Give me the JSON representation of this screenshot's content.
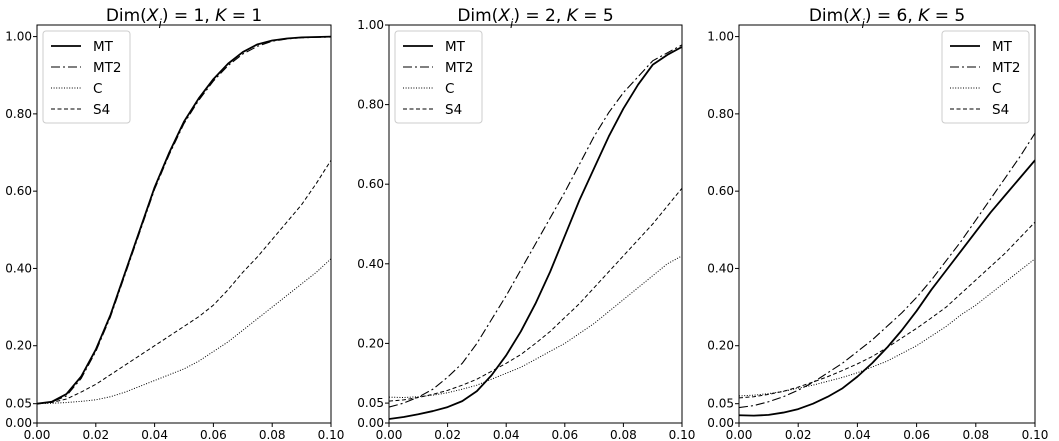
{
  "figure": {
    "legend_entries": [
      {
        "name": "MT",
        "style": "solid"
      },
      {
        "name": "MT2",
        "style": "dashdot"
      },
      {
        "name": "C",
        "style": "dotted"
      },
      {
        "name": "S4",
        "style": "dashed"
      }
    ]
  },
  "chart_data": [
    {
      "type": "line",
      "title_parts": [
        {
          "t": "Dim("
        },
        {
          "t": "X",
          "i": true
        },
        {
          "t": "i",
          "i": true,
          "sub": true
        },
        {
          "t": ") = 1, "
        },
        {
          "t": "K",
          "i": true
        },
        {
          "t": " = 1"
        }
      ],
      "xlim": [
        0,
        0.1
      ],
      "ylim": [
        0,
        1.03
      ],
      "xticks": [
        "0.00",
        "0.02",
        "0.04",
        "0.06",
        "0.08",
        "0.10"
      ],
      "yticks": [
        "0.00",
        "0.05",
        "0.20",
        "0.40",
        "0.60",
        "0.80",
        "1.00"
      ],
      "legend_position": "top-left",
      "x": [
        0,
        0.005,
        0.01,
        0.015,
        0.02,
        0.025,
        0.03,
        0.035,
        0.04,
        0.045,
        0.05,
        0.055,
        0.06,
        0.065,
        0.07,
        0.075,
        0.08,
        0.085,
        0.09,
        0.095,
        0.1
      ],
      "series": [
        {
          "name": "MT",
          "values": [
            0.05,
            0.055,
            0.075,
            0.12,
            0.19,
            0.28,
            0.39,
            0.5,
            0.61,
            0.7,
            0.78,
            0.84,
            0.89,
            0.93,
            0.96,
            0.98,
            0.99,
            0.995,
            0.998,
            0.999,
            1.0
          ]
        },
        {
          "name": "MT2",
          "values": [
            0.05,
            0.054,
            0.07,
            0.115,
            0.185,
            0.275,
            0.385,
            0.495,
            0.605,
            0.695,
            0.775,
            0.835,
            0.885,
            0.925,
            0.955,
            0.975,
            0.988,
            0.994,
            0.997,
            0.998,
            0.999
          ]
        },
        {
          "name": "C",
          "values": [
            0.05,
            0.051,
            0.053,
            0.056,
            0.06,
            0.068,
            0.08,
            0.095,
            0.11,
            0.125,
            0.14,
            0.16,
            0.185,
            0.21,
            0.24,
            0.27,
            0.3,
            0.33,
            0.36,
            0.39,
            0.425
          ]
        },
        {
          "name": "S4",
          "values": [
            0.05,
            0.053,
            0.062,
            0.08,
            0.1,
            0.125,
            0.15,
            0.175,
            0.2,
            0.225,
            0.25,
            0.275,
            0.305,
            0.345,
            0.39,
            0.43,
            0.475,
            0.52,
            0.565,
            0.62,
            0.68
          ]
        }
      ]
    },
    {
      "type": "line",
      "title_parts": [
        {
          "t": "Dim("
        },
        {
          "t": "X",
          "i": true
        },
        {
          "t": "i",
          "i": true,
          "sub": true
        },
        {
          "t": ") = 2, "
        },
        {
          "t": "K",
          "i": true
        },
        {
          "t": " = 5"
        }
      ],
      "xlim": [
        0,
        0.1
      ],
      "ylim": [
        0,
        1.0
      ],
      "xticks": [
        "0.00",
        "0.02",
        "0.04",
        "0.06",
        "0.08",
        "0.10"
      ],
      "yticks": [
        "0.00",
        "0.05",
        "0.20",
        "0.40",
        "0.60",
        "0.80",
        "1.00"
      ],
      "legend_position": "top-left",
      "x": [
        0,
        0.005,
        0.01,
        0.015,
        0.02,
        0.025,
        0.03,
        0.035,
        0.04,
        0.045,
        0.05,
        0.055,
        0.06,
        0.065,
        0.07,
        0.075,
        0.08,
        0.085,
        0.09,
        0.095,
        0.1
      ],
      "series": [
        {
          "name": "MT",
          "values": [
            0.01,
            0.015,
            0.022,
            0.03,
            0.04,
            0.055,
            0.08,
            0.12,
            0.17,
            0.23,
            0.3,
            0.38,
            0.47,
            0.56,
            0.64,
            0.72,
            0.79,
            0.85,
            0.9,
            0.925,
            0.945
          ]
        },
        {
          "name": "MT2",
          "values": [
            0.04,
            0.05,
            0.065,
            0.085,
            0.115,
            0.15,
            0.2,
            0.26,
            0.32,
            0.385,
            0.45,
            0.515,
            0.58,
            0.65,
            0.72,
            0.78,
            0.83,
            0.87,
            0.91,
            0.93,
            0.95
          ]
        },
        {
          "name": "C",
          "values": [
            0.065,
            0.064,
            0.066,
            0.07,
            0.076,
            0.085,
            0.095,
            0.11,
            0.125,
            0.14,
            0.16,
            0.18,
            0.2,
            0.225,
            0.25,
            0.28,
            0.31,
            0.34,
            0.37,
            0.4,
            0.42
          ]
        },
        {
          "name": "S4",
          "values": [
            0.055,
            0.058,
            0.064,
            0.072,
            0.082,
            0.095,
            0.11,
            0.13,
            0.15,
            0.172,
            0.2,
            0.23,
            0.265,
            0.3,
            0.34,
            0.38,
            0.42,
            0.46,
            0.5,
            0.545,
            0.59
          ]
        }
      ]
    },
    {
      "type": "line",
      "title_parts": [
        {
          "t": "Dim("
        },
        {
          "t": "X",
          "i": true
        },
        {
          "t": "i",
          "i": true,
          "sub": true
        },
        {
          "t": ") = 6, "
        },
        {
          "t": "K",
          "i": true
        },
        {
          "t": " = 5"
        }
      ],
      "xlim": [
        0,
        0.1
      ],
      "ylim": [
        0,
        1.03
      ],
      "xticks": [
        "0.00",
        "0.02",
        "0.04",
        "0.06",
        "0.08",
        "0.10"
      ],
      "yticks": [
        "0.00",
        "0.05",
        "0.20",
        "0.40",
        "0.60",
        "0.80",
        "1.00"
      ],
      "legend_position": "top-right",
      "x": [
        0,
        0.005,
        0.01,
        0.015,
        0.02,
        0.025,
        0.03,
        0.035,
        0.04,
        0.045,
        0.05,
        0.055,
        0.06,
        0.065,
        0.07,
        0.075,
        0.08,
        0.085,
        0.09,
        0.095,
        0.1
      ],
      "series": [
        {
          "name": "MT",
          "values": [
            0.02,
            0.019,
            0.021,
            0.027,
            0.036,
            0.05,
            0.068,
            0.09,
            0.12,
            0.155,
            0.195,
            0.24,
            0.29,
            0.345,
            0.395,
            0.445,
            0.495,
            0.545,
            0.59,
            0.635,
            0.68
          ]
        },
        {
          "name": "MT2",
          "values": [
            0.04,
            0.045,
            0.055,
            0.068,
            0.085,
            0.105,
            0.13,
            0.155,
            0.185,
            0.215,
            0.25,
            0.285,
            0.325,
            0.37,
            0.42,
            0.47,
            0.525,
            0.58,
            0.635,
            0.69,
            0.75
          ]
        },
        {
          "name": "C",
          "values": [
            0.07,
            0.072,
            0.076,
            0.082,
            0.09,
            0.098,
            0.108,
            0.118,
            0.13,
            0.145,
            0.16,
            0.18,
            0.2,
            0.225,
            0.25,
            0.28,
            0.305,
            0.335,
            0.365,
            0.395,
            0.425
          ]
        },
        {
          "name": "S4",
          "values": [
            0.065,
            0.068,
            0.074,
            0.082,
            0.093,
            0.106,
            0.12,
            0.136,
            0.153,
            0.172,
            0.195,
            0.22,
            0.245,
            0.272,
            0.3,
            0.335,
            0.37,
            0.405,
            0.44,
            0.48,
            0.52
          ]
        }
      ]
    }
  ]
}
